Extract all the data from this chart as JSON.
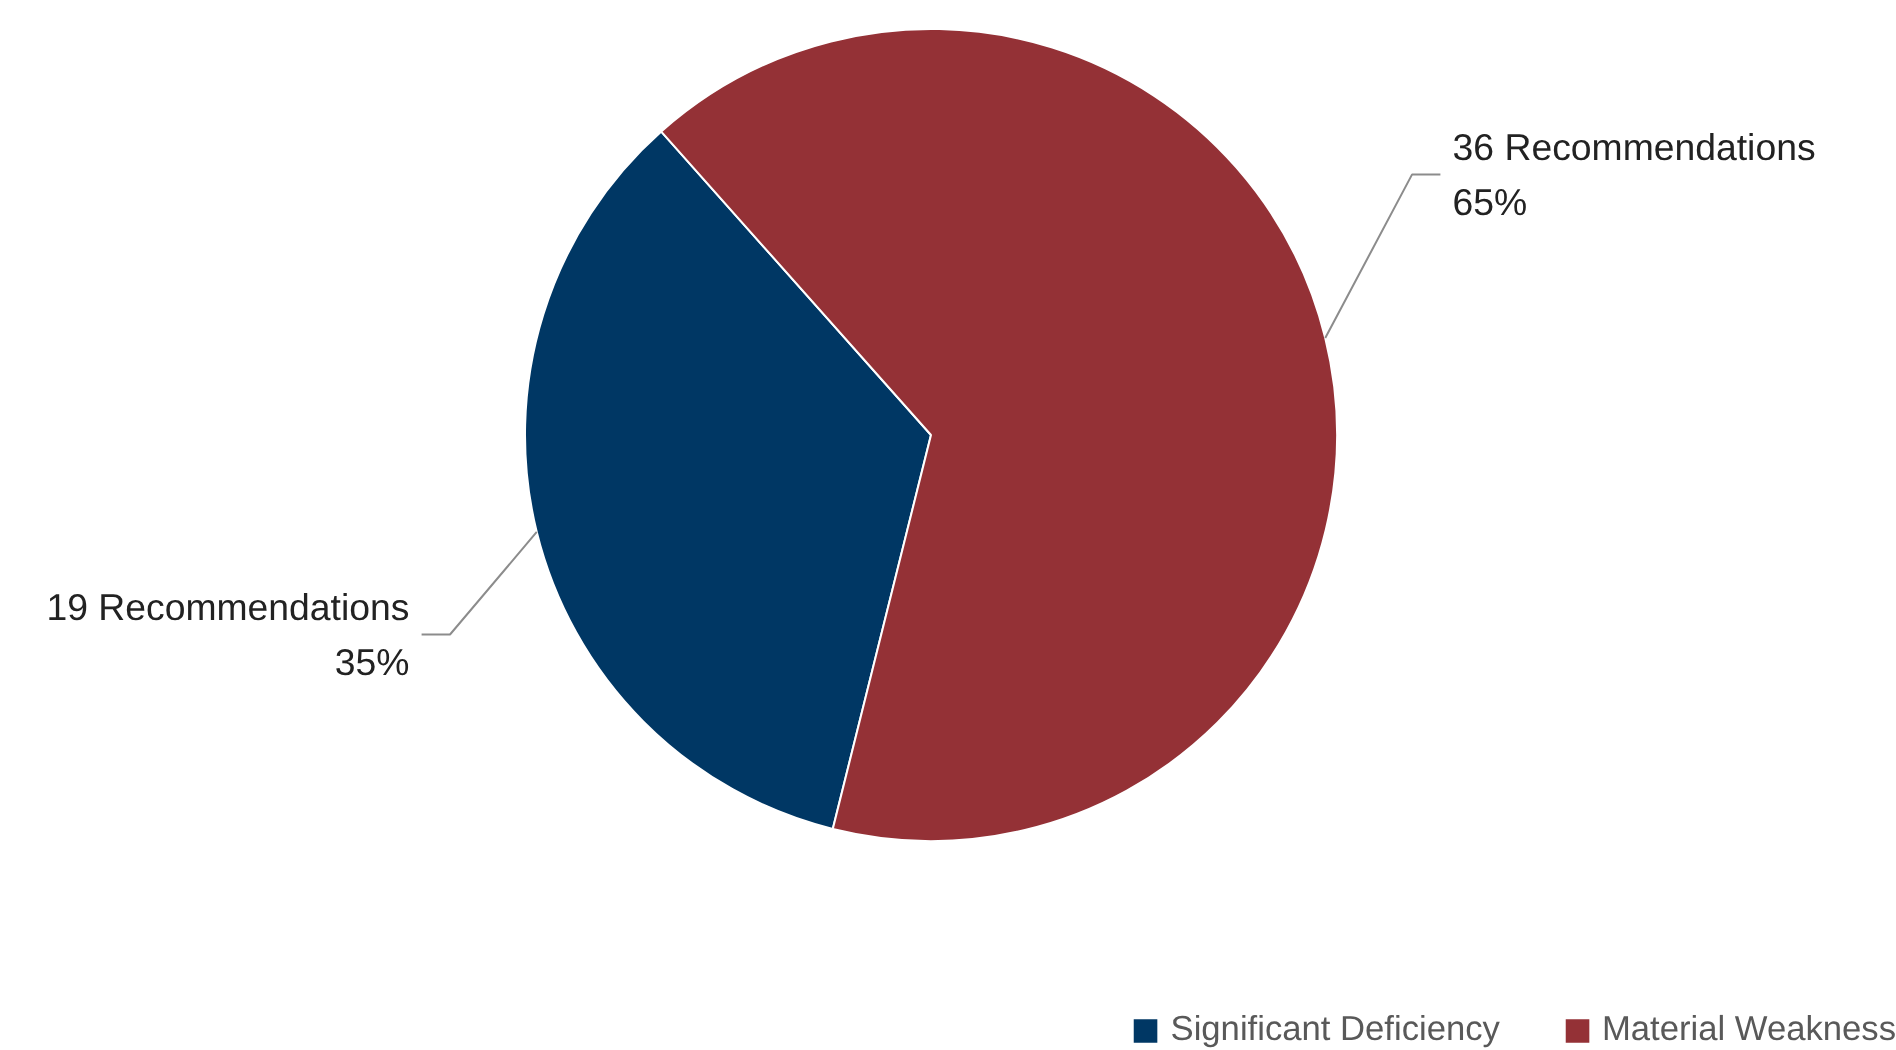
{
  "chart_data": {
    "type": "pie",
    "categories": [
      "Significant Deficiency",
      "Material Weakness"
    ],
    "values": [
      19,
      36
    ],
    "colors": [
      "#003764",
      "#943136"
    ],
    "value_labels": [
      "19 Recommendations\n35%",
      "36 Recommendations\n65%"
    ],
    "legend": "bottom right"
  }
}
